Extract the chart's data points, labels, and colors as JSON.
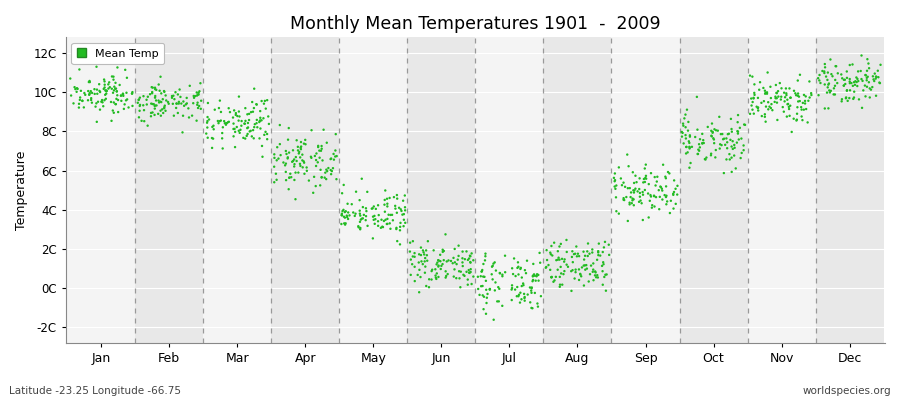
{
  "title": "Monthly Mean Temperatures 1901  -  2009",
  "ylabel": "Temperature",
  "dot_color": "#22BB22",
  "dot_size": 3,
  "background_color": "#ffffff",
  "band_color_odd": "#e8e8e8",
  "band_color_even": "#f4f4f4",
  "grid_line_color": "#999999",
  "legend_label": "Mean Temp",
  "yticks": [
    -2,
    0,
    2,
    4,
    6,
    8,
    10,
    12
  ],
  "ytick_labels": [
    "-2C",
    "0C",
    "2C",
    "4C",
    "6C",
    "8C",
    "10C",
    "12C"
  ],
  "month_labels": [
    "Jan",
    "Feb",
    "Mar",
    "Apr",
    "May",
    "Jun",
    "Jul",
    "Aug",
    "Sep",
    "Oct",
    "Nov",
    "Dec"
  ],
  "dashed_x": [
    1,
    2,
    3,
    4,
    5,
    6,
    7,
    8,
    9,
    10,
    11
  ],
  "xlim": [
    -0.02,
    12.02
  ],
  "ylim": [
    -2.8,
    12.8
  ],
  "footer_left": "Latitude -23.25 Longitude -66.75",
  "footer_right": "worldspecies.org",
  "monthly_means": [
    10.0,
    9.5,
    8.5,
    6.5,
    3.8,
    1.2,
    0.3,
    1.2,
    5.0,
    7.5,
    9.5,
    10.5
  ],
  "monthly_stds": [
    0.55,
    0.55,
    0.65,
    0.65,
    0.65,
    0.65,
    0.65,
    0.65,
    0.65,
    0.65,
    0.6,
    0.55
  ],
  "years": 109
}
